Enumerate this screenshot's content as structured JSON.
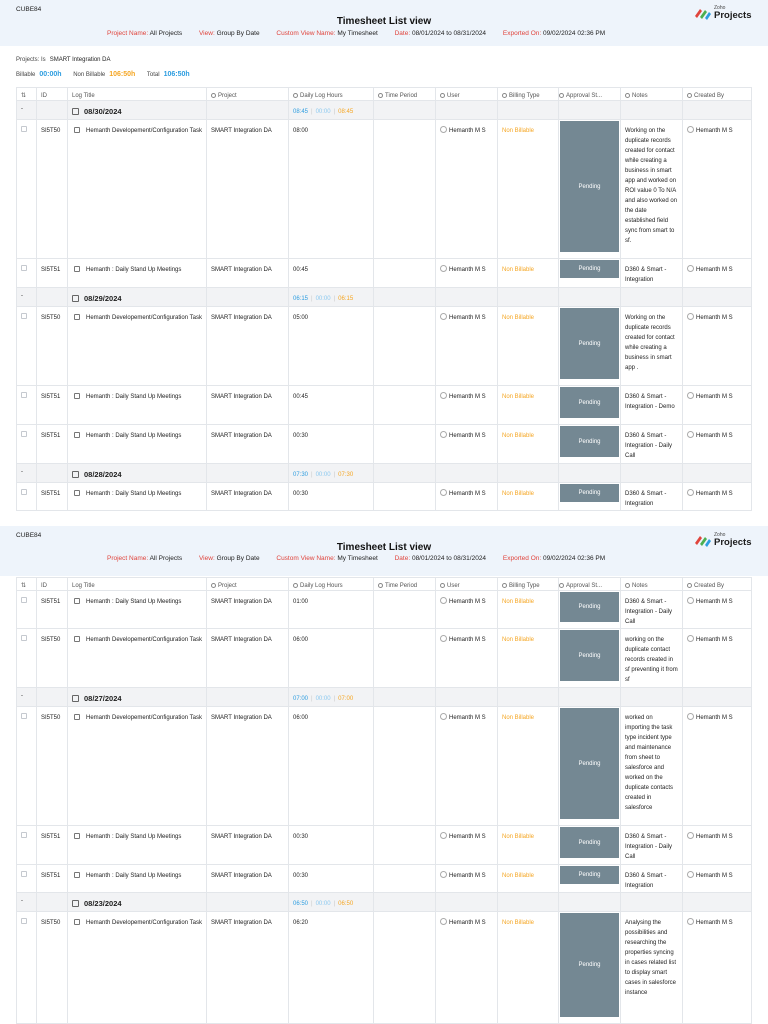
{
  "org": "CUBE84",
  "report_title": "Timesheet List view",
  "meta": [
    {
      "label": "Project Name:",
      "value": "All Projects"
    },
    {
      "label": "View:",
      "value": "Group By Date"
    },
    {
      "label": "Custom View Name:",
      "value": "My Timesheet"
    },
    {
      "label": "Date:",
      "value": "08/01/2024 to 08/31/2024"
    },
    {
      "label": "Exported On:",
      "value": "09/02/2024 02:36 PM"
    }
  ],
  "logo": {
    "brand": "Zoho",
    "product": "Projects"
  },
  "filter": {
    "label": "Projects: Is",
    "value": "SMART Integration DA"
  },
  "totals": {
    "billable_label": "Billable",
    "billable": "00:00h",
    "nonbillable_label": "Non Billable",
    "nonbillable": "106:50h",
    "total_label": "Total",
    "total": "106:50h"
  },
  "columns": [
    "ID",
    "Log Title",
    "Project",
    "Daily Log Hours",
    "Time Period",
    "User",
    "Billing Type",
    "Approval St...",
    "Notes",
    "Created By"
  ],
  "page1": [
    {
      "type": "group",
      "date": "08/30/2024",
      "b": "08:45",
      "x": "00:00",
      "n": "08:45"
    },
    {
      "type": "entry",
      "id": "SI5T50",
      "title": "Hemanth Developement/Configuration Task",
      "project": "SMART Integration DA",
      "hours": "08:00",
      "user": "Hemanth M S",
      "billing": "Non Billable",
      "approval": "Pending",
      "notes": "Working on the duplicate records created for contact while creating a business in smart app and worked on ROI value 0 To N/A and also worked on the date established field sync from smart to sf.",
      "created_by": "Hemanth M S"
    },
    {
      "type": "entry",
      "id": "SI5T51",
      "title": "Hemanth : Daily Stand Up Meetings",
      "project": "SMART Integration DA",
      "hours": "00:45",
      "user": "Hemanth M S",
      "billing": "Non Billable",
      "approval": "Pending",
      "notes": "D360 & Smart - Integration",
      "created_by": "Hemanth M S"
    },
    {
      "type": "group",
      "date": "08/29/2024",
      "b": "06:15",
      "x": "00:00",
      "n": "06:15"
    },
    {
      "type": "entry",
      "id": "SI5T50",
      "title": "Hemanth Developement/Configuration Task",
      "project": "SMART Integration DA",
      "hours": "05:00",
      "user": "Hemanth M S",
      "billing": "Non Billable",
      "approval": "Pending",
      "notes": "Working on the duplicate records created for contact while creating a business in smart app .",
      "created_by": "Hemanth M S"
    },
    {
      "type": "entry",
      "id": "SI5T51",
      "title": "Hemanth : Daily Stand Up Meetings",
      "project": "SMART Integration DA",
      "hours": "00:45",
      "user": "Hemanth M S",
      "billing": "Non Billable",
      "approval": "Pending",
      "notes": "D360 & Smart - Integration - Demo",
      "created_by": "Hemanth M S"
    },
    {
      "type": "entry",
      "id": "SI5T51",
      "title": "Hemanth : Daily Stand Up Meetings",
      "project": "SMART Integration DA",
      "hours": "00:30",
      "user": "Hemanth M S",
      "billing": "Non Billable",
      "approval": "Pending",
      "notes": "D360 & Smart - Integration - Daily Call",
      "created_by": "Hemanth M S"
    },
    {
      "type": "group",
      "date": "08/28/2024",
      "b": "07:30",
      "x": "00:00",
      "n": "07:30"
    },
    {
      "type": "entry",
      "id": "SI5T51",
      "title": "Hemanth : Daily Stand Up Meetings",
      "project": "SMART Integration DA",
      "hours": "00:30",
      "user": "Hemanth M S",
      "billing": "Non Billable",
      "approval": "Pending",
      "notes": "D360 & Smart - Integration",
      "created_by": "Hemanth M S"
    }
  ],
  "page2": [
    {
      "type": "entry",
      "id": "SI5T51",
      "title": "Hemanth : Daily Stand Up Meetings",
      "project": "SMART Integration DA",
      "hours": "01:00",
      "user": "Hemanth M S",
      "billing": "Non Billable",
      "approval": "Pending",
      "notes": "D360 & Smart - Integration - Daily Call",
      "created_by": "Hemanth M S"
    },
    {
      "type": "entry",
      "id": "SI5T50",
      "title": "Hemanth Developement/Configuration Task",
      "project": "SMART Integration DA",
      "hours": "06:00",
      "user": "Hemanth M S",
      "billing": "Non Billable",
      "approval": "Pending",
      "notes": "working on the duplicate contact records created in sf preventing it from sf",
      "created_by": "Hemanth M S"
    },
    {
      "type": "group",
      "date": "08/27/2024",
      "b": "07:00",
      "x": "00:00",
      "n": "07:00"
    },
    {
      "type": "entry",
      "id": "SI5T50",
      "title": "Hemanth Developement/Configuration Task",
      "project": "SMART Integration DA",
      "hours": "06:00",
      "user": "Hemanth M S",
      "billing": "Non Billable",
      "approval": "Pending",
      "notes": "worked on importing the task type incident type and maintenance from sheet to salesforce and worked on the duplicate contacts created in salesforce",
      "created_by": "Hemanth M S"
    },
    {
      "type": "entry",
      "id": "SI5T51",
      "title": "Hemanth : Daily Stand Up Meetings",
      "project": "SMART Integration DA",
      "hours": "00:30",
      "user": "Hemanth M S",
      "billing": "Non Billable",
      "approval": "Pending",
      "notes": "D360 & Smart - Integration - Daily Call",
      "created_by": "Hemanth M S"
    },
    {
      "type": "entry",
      "id": "SI5T51",
      "title": "Hemanth : Daily Stand Up Meetings",
      "project": "SMART Integration DA",
      "hours": "00:30",
      "user": "Hemanth M S",
      "billing": "Non Billable",
      "approval": "Pending",
      "notes": "D360 & Smart - Integration",
      "created_by": "Hemanth M S"
    },
    {
      "type": "group",
      "date": "08/23/2024",
      "b": "06:50",
      "x": "00:00",
      "n": "06:50"
    },
    {
      "type": "entry",
      "id": "SI5T50",
      "title": "Hemanth Developement/Configuration Task",
      "project": "SMART Integration DA",
      "hours": "06:20",
      "user": "Hemanth M S",
      "billing": "Non Billable",
      "approval": "Pending",
      "notes": "Analysing the possibilities and researching the properties syncing in cases related list to display smart cases in salesforce instance",
      "created_by": "Hemanth M S"
    }
  ]
}
